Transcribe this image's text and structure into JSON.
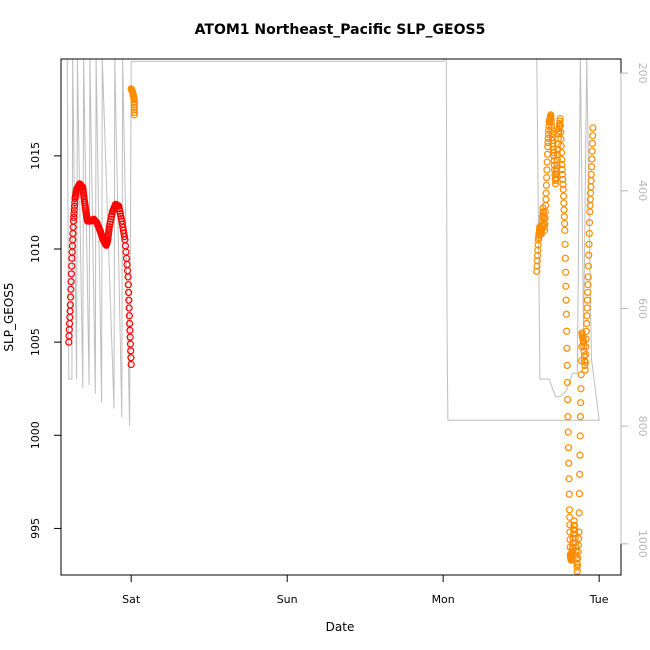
{
  "chart_data": {
    "type": "scatter",
    "title": "ATOM1 Northeast_Pacific SLP_GEOS5",
    "xlabel": "Date",
    "ylabel": "SLP_GEOS5",
    "x_ticks": [
      "Sat",
      "Sun",
      "Mon",
      "Tue"
    ],
    "x_range_days": [
      -0.45,
      3.14
    ],
    "ylim": [
      992.5,
      1020.2
    ],
    "y_ticks": [
      995,
      1000,
      1005,
      1010,
      1015
    ],
    "y2_ticks": [
      200,
      400,
      600,
      800,
      1000
    ],
    "y2_range": [
      176,
      1053
    ],
    "colors": {
      "series_red": "#ff0000",
      "series_orange": "#ff8c00",
      "altitude_line": "#bebebe",
      "right_axis": "#b8b8b8"
    },
    "series": [
      {
        "color": "#ff0000",
        "points": [
          [
            -0.4,
            1005.0
          ],
          [
            -0.39,
            1007.0
          ],
          [
            -0.38,
            1009.5
          ],
          [
            -0.37,
            1011.5
          ],
          [
            -0.36,
            1012.7
          ],
          [
            -0.35,
            1013.2
          ],
          [
            -0.33,
            1013.5
          ],
          [
            -0.31,
            1013.3
          ],
          [
            -0.3,
            1012.6
          ],
          [
            -0.29,
            1012.0
          ],
          [
            -0.28,
            1011.5
          ],
          [
            -0.26,
            1011.5
          ],
          [
            -0.24,
            1011.6
          ],
          [
            -0.22,
            1011.4
          ],
          [
            -0.2,
            1011.0
          ],
          [
            -0.18,
            1010.5
          ],
          [
            -0.16,
            1010.2
          ],
          [
            -0.15,
            1010.5
          ],
          [
            -0.14,
            1011.2
          ],
          [
            -0.12,
            1012.0
          ],
          [
            -0.1,
            1012.4
          ],
          [
            -0.08,
            1012.3
          ],
          [
            -0.06,
            1011.5
          ],
          [
            -0.04,
            1010.5
          ],
          [
            -0.02,
            1008.5
          ],
          [
            -0.01,
            1006.0
          ],
          [
            0.0,
            1003.8
          ]
        ]
      },
      {
        "color": "#ff8c00",
        "points": [
          [
            0.0,
            1018.6
          ],
          [
            0.01,
            1018.4
          ],
          [
            0.02,
            1018.0
          ],
          [
            0.02,
            1017.2
          ]
        ]
      },
      {
        "color": "#ff8c00",
        "points": [
          [
            2.6,
            1008.8
          ],
          [
            2.61,
            1010.5
          ],
          [
            2.62,
            1011.2
          ],
          [
            2.63,
            1010.8
          ],
          [
            2.64,
            1012.2
          ],
          [
            2.65,
            1011.0
          ],
          [
            2.66,
            1013.0
          ],
          [
            2.67,
            1015.5
          ],
          [
            2.68,
            1016.8
          ],
          [
            2.69,
            1017.2
          ],
          [
            2.7,
            1016.0
          ],
          [
            2.71,
            1015.0
          ],
          [
            2.72,
            1013.5
          ],
          [
            2.73,
            1014.5
          ],
          [
            2.74,
            1016.2
          ],
          [
            2.75,
            1017.0
          ],
          [
            2.76,
            1014.8
          ],
          [
            2.77,
            1013.2
          ],
          [
            2.78,
            1011.0
          ],
          [
            2.79,
            1006.5
          ],
          [
            2.8,
            1001.0
          ],
          [
            2.81,
            996.0
          ],
          [
            2.815,
            993.6
          ],
          [
            2.82,
            993.3
          ],
          [
            2.83,
            994.0
          ],
          [
            2.84,
            995.4
          ],
          [
            2.85,
            994.0
          ],
          [
            2.86,
            992.7
          ],
          [
            2.87,
            994.8
          ],
          [
            2.88,
            1001.0
          ],
          [
            2.89,
            1005.5
          ],
          [
            2.9,
            1005.0
          ],
          [
            2.91,
            1003.5
          ],
          [
            2.92,
            1006.0
          ],
          [
            2.93,
            1008.5
          ],
          [
            2.94,
            1012.0
          ],
          [
            2.95,
            1014.0
          ],
          [
            2.96,
            1016.5
          ]
        ]
      }
    ],
    "altitude_trace": [
      [
        -0.41,
        176
      ],
      [
        -0.4,
        720
      ],
      [
        -0.38,
        720
      ],
      [
        -0.375,
        176
      ],
      [
        -0.35,
        720
      ],
      [
        -0.345,
        176
      ],
      [
        -0.31,
        735
      ],
      [
        -0.305,
        176
      ],
      [
        -0.27,
        730
      ],
      [
        -0.265,
        176
      ],
      [
        -0.23,
        745
      ],
      [
        -0.225,
        176
      ],
      [
        -0.19,
        760
      ],
      [
        -0.185,
        176
      ],
      [
        -0.11,
        770
      ],
      [
        -0.105,
        176
      ],
      [
        -0.06,
        785
      ],
      [
        -0.055,
        176
      ],
      [
        -0.01,
        800
      ],
      [
        0.0,
        180
      ],
      [
        2.0,
        180
      ],
      [
        2.02,
        172
      ],
      [
        2.025,
        650
      ],
      [
        2.03,
        790
      ],
      [
        3.0,
        790
      ],
      [
        2.95,
        685
      ],
      [
        2.92,
        176
      ],
      [
        2.9,
        650
      ],
      [
        2.88,
        176
      ],
      [
        2.86,
        710
      ],
      [
        2.83,
        710
      ],
      [
        2.79,
        740
      ],
      [
        2.75,
        750
      ],
      [
        2.72,
        750
      ],
      [
        2.68,
        720
      ],
      [
        2.62,
        720
      ],
      [
        2.6,
        176
      ]
    ]
  }
}
